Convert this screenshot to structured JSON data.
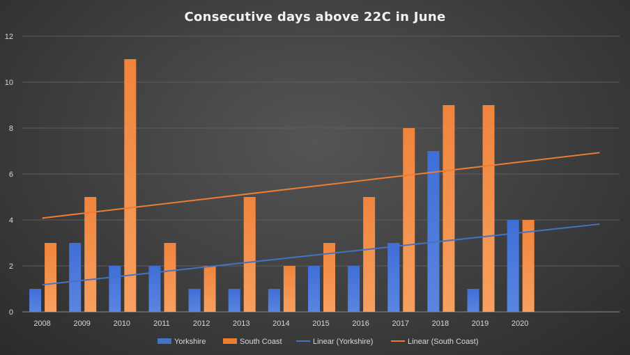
{
  "chart_data": {
    "type": "bar",
    "title": "Consecutive  days above  22C in June",
    "categories": [
      "2008",
      "2009",
      "2010",
      "2011",
      "2012",
      "2013",
      "2014",
      "2015",
      "2016",
      "2017",
      "2018",
      "2019",
      "2020"
    ],
    "series": [
      {
        "name": "Yorkshire",
        "color": "#4472c4",
        "values": [
          1,
          3,
          2,
          2,
          1,
          1,
          1,
          2,
          2,
          3,
          7,
          1,
          4
        ]
      },
      {
        "name": "South Coast",
        "color": "#ed7d31",
        "values": [
          3,
          5,
          11,
          3,
          2,
          5,
          2,
          3,
          5,
          8,
          9,
          9,
          4
        ]
      }
    ],
    "trendlines": [
      {
        "name": "Linear (Yorkshire)",
        "color": "#4472c4",
        "start": 1.18,
        "end": 3.82
      },
      {
        "name": "Linear (South Coast)",
        "color": "#ed7d31",
        "start": 4.08,
        "end": 6.93
      }
    ],
    "ylim": [
      0,
      12
    ],
    "yticks": [
      "0",
      "2",
      "4",
      "6",
      "8",
      "10",
      "12"
    ],
    "xlabel": "",
    "ylabel": "",
    "grid": true,
    "legend_position": "bottom"
  }
}
